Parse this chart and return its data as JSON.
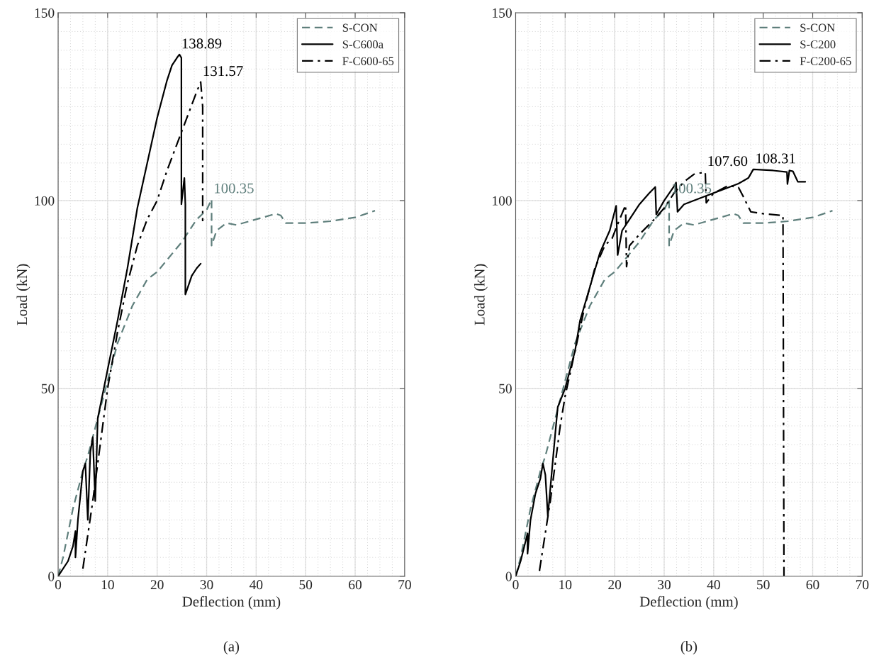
{
  "chart_data": [
    {
      "type": "line",
      "xlabel": "Deflection (mm)",
      "ylabel": "Load (kN)",
      "xlim": [
        0,
        70
      ],
      "ylim": [
        0,
        150
      ],
      "xticks": [
        0,
        10,
        20,
        30,
        40,
        50,
        60,
        70
      ],
      "yticks": [
        0,
        50,
        100,
        150
      ],
      "grid": true,
      "legend": "top right",
      "series": [
        {
          "name": "S-CON",
          "color": "#5f7f7c",
          "line_style": "dashed",
          "x": [
            0,
            1,
            3,
            5,
            6,
            8,
            10,
            12,
            15,
            18,
            20,
            25,
            28,
            30,
            31,
            31,
            32,
            34,
            36,
            40,
            44,
            45,
            46,
            50,
            55,
            60,
            64
          ],
          "values": [
            0,
            5,
            18,
            28,
            32,
            42,
            52,
            62,
            72,
            79,
            81,
            89,
            95,
            97.5,
            100.35,
            88,
            92,
            94,
            93.5,
            95,
            96.5,
            96,
            94,
            94,
            94.5,
            95.5,
            97.3
          ]
        },
        {
          "name": "S-C600a",
          "color": "#000000",
          "line_style": "solid",
          "x": [
            0,
            2,
            3,
            3.5,
            3.5,
            4,
            5,
            5.5,
            6,
            6.5,
            7,
            7.5,
            8,
            10,
            12,
            14,
            16,
            18,
            20,
            22,
            23,
            24,
            24.5,
            24.9,
            24.9,
            25.5,
            25.7,
            25.7,
            27,
            28,
            28.8
          ],
          "values": [
            0,
            4,
            8,
            12,
            5,
            15,
            28,
            30,
            15,
            33,
            37,
            20,
            42,
            55,
            68,
            82,
            98,
            110,
            122,
            132,
            136,
            138,
            138.89,
            138,
            99,
            106,
            99,
            75,
            80,
            82,
            83.2
          ]
        },
        {
          "name": "F-C600-65",
          "color": "#000000",
          "line_style": "dashdot",
          "x": [
            5,
            7,
            9,
            10,
            12,
            14,
            16,
            18,
            20,
            22,
            24,
            26,
            28,
            28.8,
            29.2,
            29.2
          ],
          "values": [
            2,
            20,
            40,
            50,
            65,
            78,
            88,
            95,
            100,
            108,
            115,
            122,
            129,
            131.57,
            125,
            94.5
          ]
        }
      ],
      "annotations": [
        {
          "text": "138.89",
          "x": 24.5,
          "y": 138.89
        },
        {
          "text": "131.57",
          "x": 28.8,
          "y": 131.57
        },
        {
          "text": "100.35",
          "x": 31,
          "y": 100.35
        },
        "(a)"
      ]
    },
    {
      "type": "line",
      "xlabel": "Deflection (mm)",
      "ylabel": "Load (kN)",
      "xlim": [
        0,
        70
      ],
      "ylim": [
        0,
        150
      ],
      "xticks": [
        0,
        10,
        20,
        30,
        40,
        50,
        60,
        70
      ],
      "yticks": [
        0,
        50,
        100,
        150
      ],
      "grid": true,
      "legend": "top right",
      "series": [
        {
          "name": "S-CON",
          "color": "#5f7f7c",
          "line_style": "dashed",
          "x": [
            0,
            1,
            3,
            5,
            6,
            8,
            10,
            12,
            15,
            18,
            20,
            25,
            28,
            30,
            31,
            31,
            32,
            34,
            36,
            40,
            44,
            45,
            46,
            50,
            55,
            60,
            64
          ],
          "values": [
            0,
            5,
            18,
            28,
            32,
            42,
            52,
            62,
            72,
            79,
            81,
            89,
            95,
            97.5,
            100.35,
            88,
            92,
            94,
            93.5,
            95,
            96.5,
            96,
            94,
            94,
            94.5,
            95.5,
            97.3
          ]
        },
        {
          "name": "S-C200",
          "color": "#000000",
          "line_style": "solid",
          "x": [
            0,
            1,
            2.4,
            2.4,
            3,
            4,
            5,
            5.5,
            6,
            6.5,
            8,
            8.5,
            10,
            12,
            13,
            15,
            17,
            19,
            20.3,
            20.6,
            21.5,
            23,
            25,
            27,
            28.2,
            28.4,
            30,
            32,
            32.4,
            32.7,
            34,
            38,
            42,
            45,
            47,
            48,
            52,
            54.8,
            54.9,
            55.3,
            56,
            57,
            58.5
          ],
          "values": [
            0,
            4,
            11.4,
            6,
            15,
            22,
            26,
            30,
            27,
            16,
            38,
            45,
            50,
            60,
            68,
            77,
            86,
            92,
            98.6,
            85.5,
            92,
            95,
            99,
            102,
            103.6,
            96.3,
            100,
            103.8,
            104.8,
            97,
            99,
            101,
            103,
            104.5,
            106,
            108.31,
            108,
            107.6,
            104.4,
            108,
            107.8,
            105,
            105
          ]
        },
        {
          "name": "F-C200-65",
          "color": "#000000",
          "line_style": "dashdot",
          "x": [
            4.8,
            7,
            9,
            10,
            12,
            14,
            16,
            18,
            19.5,
            21,
            22.2,
            22.4,
            23,
            25,
            28,
            30,
            32,
            34,
            36,
            38.3,
            38.5,
            40,
            43,
            45,
            46,
            47.5,
            50,
            54,
            54.2
          ],
          "values": [
            1.4,
            20,
            40,
            48,
            60,
            72,
            82,
            88,
            90,
            95,
            98.8,
            82.4,
            88,
            91,
            95,
            98,
            102,
            105,
            107,
            107.6,
            99.4,
            102,
            104,
            103.5,
            101,
            97,
            96.5,
            96,
            0
          ]
        }
      ],
      "annotations": [
        {
          "text": "107.60",
          "x": 38.3,
          "y": 107.6
        },
        {
          "text": "108.31",
          "x": 48,
          "y": 108.31
        },
        {
          "text": "100.35",
          "x": 31,
          "y": 100.35
        },
        "(b)"
      ]
    }
  ]
}
